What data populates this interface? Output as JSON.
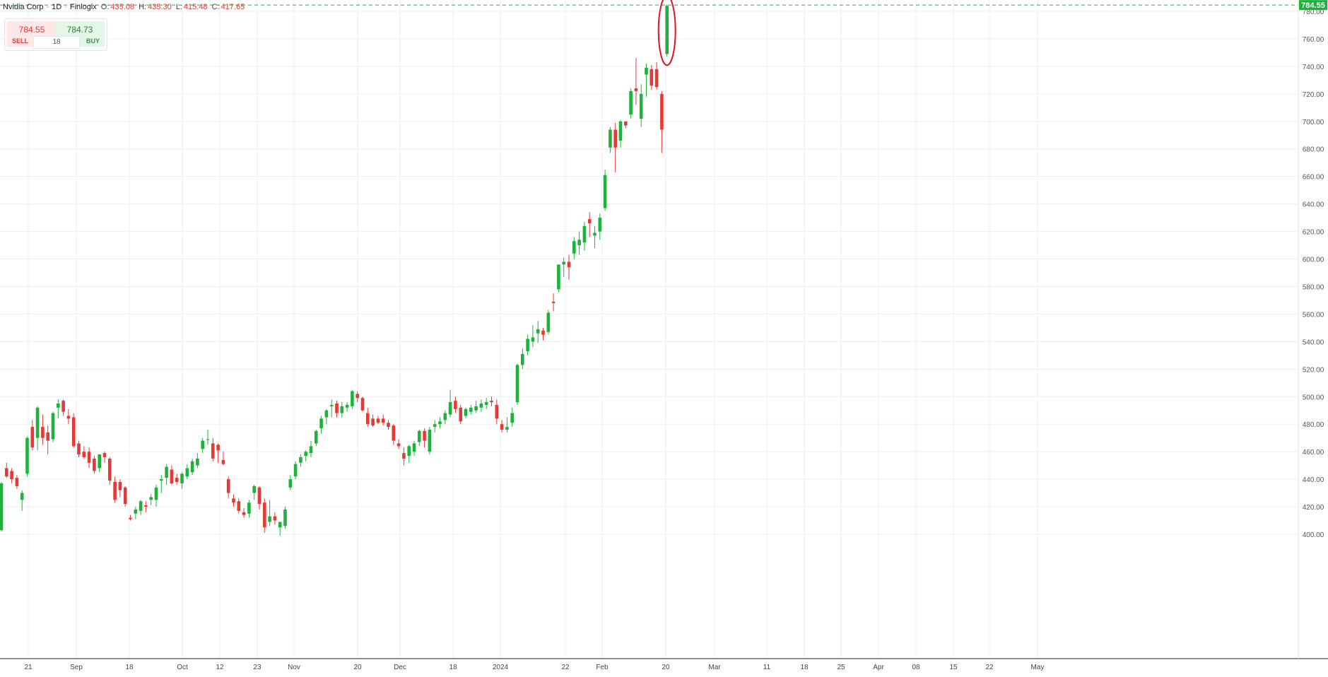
{
  "header": {
    "symbol": "Nvidia Corp",
    "interval": "1D",
    "source": "Finlogix",
    "ohlc": {
      "o_label": "O:",
      "o": "435.08",
      "h_label": "H:",
      "h": "435.30",
      "l_label": "L:",
      "l": "415.48",
      "c_label": "C:",
      "c": "417.65"
    }
  },
  "trade_panel": {
    "sell_price": "784.55",
    "buy_price": "784.73",
    "sell_label": "SELL",
    "buy_label": "BUY",
    "quantity": "18"
  },
  "colors": {
    "up": "#1db33b",
    "down": "#e53935",
    "grid": "#eeeeee",
    "last_price": "#1db33b",
    "annotation": "#e0141e"
  },
  "chart_data": {
    "type": "candlestick",
    "y_range": [
      395,
      785
    ],
    "y_ticks": [
      "400.00",
      "420.00",
      "440.00",
      "460.00",
      "480.00",
      "500.00",
      "520.00",
      "540.00",
      "560.00",
      "580.00",
      "600.00",
      "620.00",
      "640.00",
      "660.00",
      "680.00",
      "700.00",
      "720.00",
      "740.00",
      "760.00",
      "780.00"
    ],
    "x_labels": [
      "21",
      "Sep",
      "18",
      "Oct",
      "12",
      "23",
      "Nov",
      "20",
      "Dec",
      "18",
      "2024",
      "22",
      "Feb",
      "20",
      "Mar",
      "11",
      "18",
      "25",
      "Apr",
      "08",
      "15",
      "22",
      "May"
    ],
    "last_price": "784.55",
    "candles": [
      {
        "o": 403,
        "h": 438,
        "l": 402,
        "c": 437
      },
      {
        "o": 448,
        "h": 452,
        "l": 441,
        "c": 442
      },
      {
        "o": 446,
        "h": 448,
        "l": 437,
        "c": 440
      },
      {
        "o": 441,
        "h": 443,
        "l": 433,
        "c": 435
      },
      {
        "o": 425,
        "h": 432,
        "l": 417,
        "c": 430
      },
      {
        "o": 444,
        "h": 471,
        "l": 442,
        "c": 470
      },
      {
        "o": 478,
        "h": 483,
        "l": 461,
        "c": 463
      },
      {
        "o": 470,
        "h": 493,
        "l": 461,
        "c": 492
      },
      {
        "o": 478,
        "h": 487,
        "l": 465,
        "c": 470
      },
      {
        "o": 474,
        "h": 479,
        "l": 458,
        "c": 468
      },
      {
        "o": 469,
        "h": 489,
        "l": 467,
        "c": 488
      },
      {
        "o": 492,
        "h": 498,
        "l": 484,
        "c": 495
      },
      {
        "o": 497,
        "h": 498,
        "l": 486,
        "c": 489
      },
      {
        "o": 486,
        "h": 491,
        "l": 480,
        "c": 484
      },
      {
        "o": 485,
        "h": 488,
        "l": 463,
        "c": 464
      },
      {
        "o": 466,
        "h": 468,
        "l": 456,
        "c": 458
      },
      {
        "o": 460,
        "h": 464,
        "l": 455,
        "c": 456
      },
      {
        "o": 460,
        "h": 463,
        "l": 448,
        "c": 452
      },
      {
        "o": 455,
        "h": 457,
        "l": 444,
        "c": 446
      },
      {
        "o": 448,
        "h": 458,
        "l": 445,
        "c": 458
      },
      {
        "o": 459,
        "h": 460,
        "l": 452,
        "c": 456
      },
      {
        "o": 455,
        "h": 456,
        "l": 436,
        "c": 439
      },
      {
        "o": 438,
        "h": 442,
        "l": 423,
        "c": 425
      },
      {
        "o": 438,
        "h": 440,
        "l": 427,
        "c": 432
      },
      {
        "o": 434,
        "h": 435,
        "l": 420,
        "c": 422
      },
      {
        "o": 412,
        "h": 414,
        "l": 410,
        "c": 411
      },
      {
        "o": 415,
        "h": 420,
        "l": 411,
        "c": 418
      },
      {
        "o": 417,
        "h": 425,
        "l": 414,
        "c": 424
      },
      {
        "o": 421,
        "h": 424,
        "l": 416,
        "c": 420
      },
      {
        "o": 425,
        "h": 429,
        "l": 421,
        "c": 427
      },
      {
        "o": 425,
        "h": 436,
        "l": 420,
        "c": 434
      },
      {
        "o": 439,
        "h": 443,
        "l": 430,
        "c": 440
      },
      {
        "o": 441,
        "h": 451,
        "l": 436,
        "c": 449
      },
      {
        "o": 447,
        "h": 450,
        "l": 436,
        "c": 437
      },
      {
        "o": 441,
        "h": 444,
        "l": 436,
        "c": 438
      },
      {
        "o": 437,
        "h": 445,
        "l": 433,
        "c": 444
      },
      {
        "o": 442,
        "h": 451,
        "l": 440,
        "c": 448
      },
      {
        "o": 445,
        "h": 455,
        "l": 443,
        "c": 453
      },
      {
        "o": 450,
        "h": 459,
        "l": 448,
        "c": 455
      },
      {
        "o": 462,
        "h": 470,
        "l": 459,
        "c": 468
      },
      {
        "o": 469,
        "h": 476,
        "l": 465,
        "c": 469
      },
      {
        "o": 466,
        "h": 470,
        "l": 453,
        "c": 455
      },
      {
        "o": 465,
        "h": 466,
        "l": 452,
        "c": 461
      },
      {
        "o": 454,
        "h": 460,
        "l": 450,
        "c": 451
      },
      {
        "o": 440,
        "h": 442,
        "l": 426,
        "c": 430
      },
      {
        "o": 426,
        "h": 429,
        "l": 420,
        "c": 423
      },
      {
        "o": 424,
        "h": 426,
        "l": 415,
        "c": 417
      },
      {
        "o": 416,
        "h": 419,
        "l": 412,
        "c": 414
      },
      {
        "o": 415,
        "h": 425,
        "l": 412,
        "c": 423
      },
      {
        "o": 430,
        "h": 436,
        "l": 425,
        "c": 435
      },
      {
        "o": 434,
        "h": 435,
        "l": 418,
        "c": 422
      },
      {
        "o": 423,
        "h": 426,
        "l": 401,
        "c": 405
      },
      {
        "o": 409,
        "h": 425,
        "l": 406,
        "c": 413
      },
      {
        "o": 413,
        "h": 416,
        "l": 407,
        "c": 410
      },
      {
        "o": 405,
        "h": 408,
        "l": 399,
        "c": 409
      },
      {
        "o": 406,
        "h": 420,
        "l": 404,
        "c": 418
      },
      {
        "o": 434,
        "h": 443,
        "l": 432,
        "c": 440
      },
      {
        "o": 442,
        "h": 453,
        "l": 440,
        "c": 451
      },
      {
        "o": 452,
        "h": 458,
        "l": 449,
        "c": 456
      },
      {
        "o": 457,
        "h": 461,
        "l": 453,
        "c": 460
      },
      {
        "o": 459,
        "h": 468,
        "l": 456,
        "c": 464
      },
      {
        "o": 466,
        "h": 476,
        "l": 464,
        "c": 475
      },
      {
        "o": 477,
        "h": 486,
        "l": 473,
        "c": 484
      },
      {
        "o": 485,
        "h": 491,
        "l": 480,
        "c": 490
      },
      {
        "o": 493,
        "h": 498,
        "l": 485,
        "c": 494
      },
      {
        "o": 495,
        "h": 497,
        "l": 485,
        "c": 488
      },
      {
        "o": 488,
        "h": 496,
        "l": 485,
        "c": 493
      },
      {
        "o": 492,
        "h": 496,
        "l": 489,
        "c": 494
      },
      {
        "o": 493,
        "h": 505,
        "l": 491,
        "c": 504
      },
      {
        "o": 502,
        "h": 504,
        "l": 496,
        "c": 499
      },
      {
        "o": 499,
        "h": 500,
        "l": 489,
        "c": 490
      },
      {
        "o": 488,
        "h": 492,
        "l": 478,
        "c": 480
      },
      {
        "o": 484,
        "h": 487,
        "l": 478,
        "c": 479
      },
      {
        "o": 484,
        "h": 486,
        "l": 480,
        "c": 481
      },
      {
        "o": 484,
        "h": 487,
        "l": 479,
        "c": 481
      },
      {
        "o": 481,
        "h": 483,
        "l": 476,
        "c": 478
      },
      {
        "o": 479,
        "h": 480,
        "l": 465,
        "c": 468
      },
      {
        "o": 466,
        "h": 469,
        "l": 462,
        "c": 464
      },
      {
        "o": 459,
        "h": 463,
        "l": 450,
        "c": 455
      },
      {
        "o": 457,
        "h": 465,
        "l": 452,
        "c": 464
      },
      {
        "o": 460,
        "h": 468,
        "l": 457,
        "c": 466
      },
      {
        "o": 467,
        "h": 476,
        "l": 464,
        "c": 475
      },
      {
        "o": 475,
        "h": 477,
        "l": 463,
        "c": 468
      },
      {
        "o": 460,
        "h": 478,
        "l": 458,
        "c": 476
      },
      {
        "o": 478,
        "h": 483,
        "l": 474,
        "c": 480
      },
      {
        "o": 480,
        "h": 485,
        "l": 477,
        "c": 482
      },
      {
        "o": 483,
        "h": 490,
        "l": 480,
        "c": 488
      },
      {
        "o": 487,
        "h": 505,
        "l": 485,
        "c": 496
      },
      {
        "o": 497,
        "h": 500,
        "l": 488,
        "c": 491
      },
      {
        "o": 492,
        "h": 494,
        "l": 480,
        "c": 482
      },
      {
        "o": 486,
        "h": 492,
        "l": 484,
        "c": 491
      },
      {
        "o": 489,
        "h": 494,
        "l": 487,
        "c": 492
      },
      {
        "o": 490,
        "h": 497,
        "l": 488,
        "c": 493
      },
      {
        "o": 492,
        "h": 498,
        "l": 489,
        "c": 495
      },
      {
        "o": 494,
        "h": 499,
        "l": 491,
        "c": 496
      },
      {
        "o": 497,
        "h": 500,
        "l": 493,
        "c": 496
      },
      {
        "o": 494,
        "h": 498,
        "l": 480,
        "c": 484
      },
      {
        "o": 480,
        "h": 483,
        "l": 474,
        "c": 476
      },
      {
        "o": 476,
        "h": 485,
        "l": 474,
        "c": 478
      },
      {
        "o": 481,
        "h": 492,
        "l": 478,
        "c": 488
      },
      {
        "o": 496,
        "h": 524,
        "l": 494,
        "c": 523
      },
      {
        "o": 523,
        "h": 535,
        "l": 520,
        "c": 531
      },
      {
        "o": 533,
        "h": 545,
        "l": 530,
        "c": 542
      },
      {
        "o": 540,
        "h": 552,
        "l": 536,
        "c": 543
      },
      {
        "o": 546,
        "h": 555,
        "l": 539,
        "c": 549
      },
      {
        "o": 548,
        "h": 550,
        "l": 541,
        "c": 545
      },
      {
        "o": 547,
        "h": 563,
        "l": 545,
        "c": 561
      },
      {
        "o": 569,
        "h": 575,
        "l": 562,
        "c": 568
      },
      {
        "o": 578,
        "h": 596,
        "l": 576,
        "c": 596
      },
      {
        "o": 596,
        "h": 601,
        "l": 587,
        "c": 598
      },
      {
        "o": 598,
        "h": 603,
        "l": 585,
        "c": 594
      },
      {
        "o": 604,
        "h": 616,
        "l": 600,
        "c": 613
      },
      {
        "o": 610,
        "h": 620,
        "l": 603,
        "c": 614
      },
      {
        "o": 612,
        "h": 627,
        "l": 606,
        "c": 624
      },
      {
        "o": 629,
        "h": 634,
        "l": 616,
        "c": 626
      },
      {
        "o": 617,
        "h": 624,
        "l": 608,
        "c": 619
      },
      {
        "o": 620,
        "h": 633,
        "l": 614,
        "c": 630
      },
      {
        "o": 637,
        "h": 665,
        "l": 635,
        "c": 661
      },
      {
        "o": 681,
        "h": 696,
        "l": 677,
        "c": 694
      },
      {
        "o": 694,
        "h": 699,
        "l": 663,
        "c": 681
      },
      {
        "o": 686,
        "h": 701,
        "l": 681,
        "c": 700
      },
      {
        "o": 700,
        "h": 700,
        "l": 695,
        "c": 697
      },
      {
        "o": 705,
        "h": 724,
        "l": 702,
        "c": 722
      },
      {
        "o": 724,
        "h": 746,
        "l": 712,
        "c": 722
      },
      {
        "o": 702,
        "h": 727,
        "l": 696,
        "c": 720
      },
      {
        "o": 734,
        "h": 742,
        "l": 718,
        "c": 739
      },
      {
        "o": 738,
        "h": 741,
        "l": 723,
        "c": 726
      },
      {
        "o": 738,
        "h": 743,
        "l": 723,
        "c": 725
      },
      {
        "o": 720,
        "h": 722,
        "l": 677,
        "c": 694
      },
      {
        "o": 749,
        "h": 785,
        "l": 747,
        "c": 784
      }
    ]
  }
}
